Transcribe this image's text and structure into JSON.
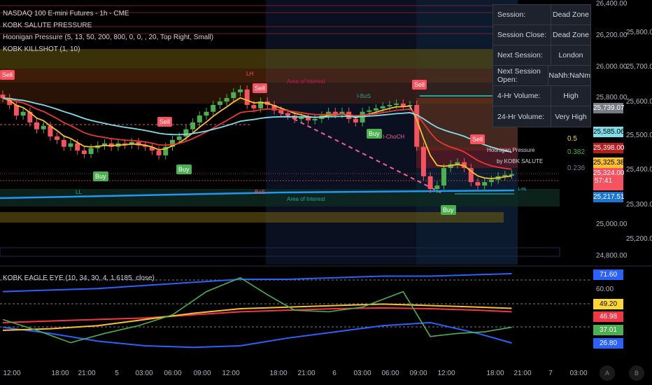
{
  "header": {
    "symbol": "NASDAQ 100 E-mini Futures - 1h - CME",
    "ind1": "KOBK SALUTE PRESSURE",
    "ind2": "Hoonigan Pressure (5, 13, 50, 200, 800, 0, 0, , 20, Top Right, Small)",
    "ind3": "KOBK KILLSHOT (1, 10)",
    "ind4": "KOBK EAGLE EYE (10, 34, 30, 4, 1.6185, close)"
  },
  "session_table": [
    {
      "k": "Session:",
      "v": "Dead Zone"
    },
    {
      "k": "Session Close:",
      "v": "Dead Zone"
    },
    {
      "k": "Next Session:",
      "v": "London"
    },
    {
      "k": "Next Session Open:",
      "v": "NaNh:NaNm"
    },
    {
      "k": "4-Hr Volume:",
      "v": "High"
    },
    {
      "k": "24-Hr Volume:",
      "v": "Very High"
    }
  ],
  "axis_left": [
    "26,400.00",
    "26,200.00",
    "26,000.00",
    "25,800.00",
    "25,000.00",
    "24,800.00"
  ],
  "axis_right": [
    "25,800.00",
    "25,700.00",
    "25,600.00",
    "25,500.00",
    "25,400.00",
    "25,300.00",
    "25,200.00"
  ],
  "price_tags": {
    "t1": "25,739.07",
    "t2": "25,585.06",
    "t3": "25,398.00",
    "t4": "25,325.38",
    "t5": "25,324.00",
    "countdown": "57:41",
    "t6": "25,217.51"
  },
  "osc_axis": {
    "t1": "71.60",
    "lvl": "60.00",
    "t2": "49.20",
    "t3": "46.98",
    "t4": "37.01",
    "t5": "26.80"
  },
  "time_axis": [
    "12:00",
    "18:00",
    "21:00",
    "5",
    "03:00",
    "06:00",
    "09:00",
    "12:00",
    "18:00",
    "21:00",
    "6",
    "03:00",
    "06:00",
    "09:00",
    "12:00",
    "18:00",
    "21:00",
    "7",
    "03:00"
  ],
  "scale_buttons": {
    "a": "A",
    "b": "B"
  },
  "signals": {
    "sell": "Sell",
    "buy": "Buy"
  },
  "labels": {
    "aoi": "Area of Interest",
    "ibos": "I-BoS",
    "ichoch": "I-ChoCH",
    "ll": "LL",
    "lh": "LH",
    "bos": "BoS",
    "f05": "0.5",
    "f0382": "0.382",
    "f0236": "0.236",
    "hp": "Hoonigan Pressure",
    "by": "by KOBK SALUTE",
    "hl": "1-HL"
  },
  "colors": {
    "up": "#4caf50",
    "down": "#f7525f",
    "blue": "#2962ff",
    "red": "#f23645",
    "yellow": "#fbc02d",
    "green": "#4caf50"
  },
  "candles": {
    "first_open": 25620,
    "closes": [
      25610,
      25590,
      25559,
      25570,
      25539,
      25519,
      25529,
      25498,
      25488,
      25468,
      25478,
      25457,
      25447,
      25464,
      25472,
      25478,
      25468,
      25478,
      25474,
      25482,
      25472,
      25468,
      25457,
      25443,
      25468,
      25488,
      25498,
      25519,
      25539,
      25559,
      25570,
      25590,
      25600,
      25610,
      25627,
      25635,
      25590,
      25580,
      25600,
      25590,
      25574,
      25566,
      25559,
      25549,
      25553,
      25545,
      25549,
      25559,
      25570,
      25563,
      25570,
      25549,
      25539,
      25570,
      25574,
      25580,
      25586,
      25590,
      25594,
      25586,
      25590,
      25468,
      25382,
      25345,
      25355,
      25406,
      25417,
      25423,
      25406,
      25365,
      25355,
      25365,
      25372,
      25382,
      25386,
      25388
    ]
  },
  "oscillator": {
    "idx": [
      0,
      7,
      14,
      21,
      28,
      35,
      42,
      49,
      56,
      63,
      70,
      75
    ],
    "upper": [
      60,
      61,
      62,
      64,
      66,
      68,
      68,
      69,
      70,
      70,
      71,
      71.6
    ],
    "lower": [
      37,
      33,
      28,
      25,
      24,
      25,
      30,
      34,
      38,
      40,
      33,
      26.8
    ],
    "red": [
      40,
      41,
      42,
      43,
      45,
      47,
      48,
      49,
      49.5,
      49,
      48,
      46.98
    ],
    "yellow": [
      35,
      36,
      38,
      42,
      46,
      49,
      50,
      51,
      52,
      51,
      50,
      49.2
    ],
    "green_idx": [
      0,
      5,
      10,
      15,
      20,
      25,
      30,
      35,
      39,
      43,
      48,
      53,
      59,
      63,
      67,
      71,
      75
    ],
    "green": [
      42,
      35,
      27,
      33,
      38,
      45,
      60,
      69,
      58,
      48,
      47,
      50,
      60,
      31,
      33,
      34,
      37.01
    ]
  }
}
